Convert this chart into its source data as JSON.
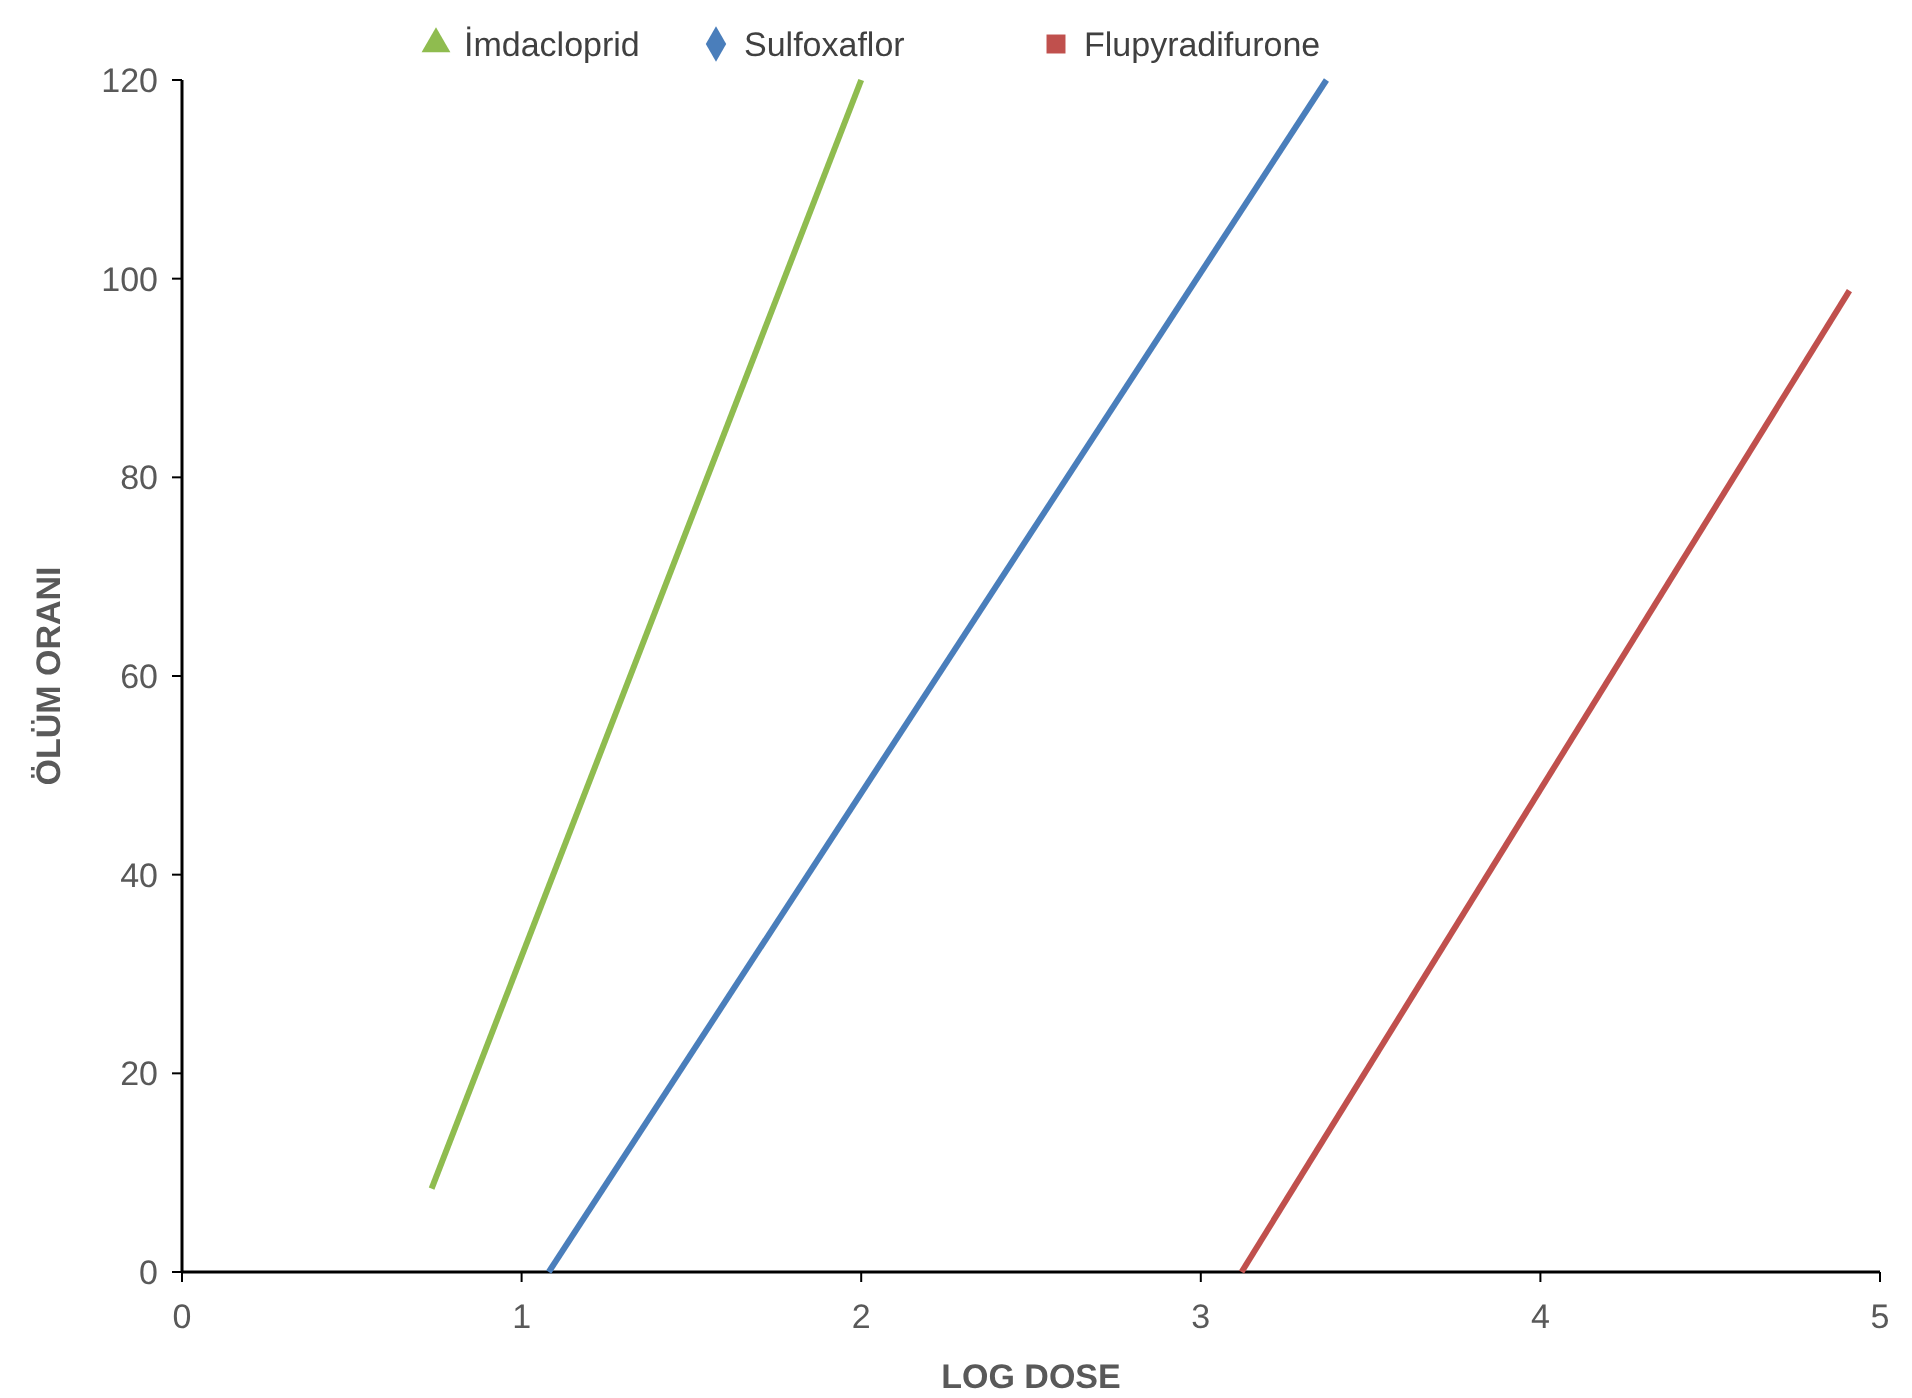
{
  "chart_data": {
    "type": "line",
    "xlabel": "LOG DOSE",
    "ylabel": "ÖLÜM ORANI",
    "xlim": [
      0,
      5
    ],
    "xticks": [
      0,
      1,
      2,
      3,
      4,
      5
    ],
    "ylim": [
      0,
      120
    ],
    "yticks": [
      0,
      20,
      40,
      60,
      80,
      100,
      120
    ],
    "grid": false,
    "legend": "top",
    "line_style": "solid",
    "series": [
      {
        "name": "İmdacloprid",
        "color": "#8fbc4f",
        "x": [
          0.735,
          2.0
        ],
        "values": [
          8.4,
          120
        ]
      },
      {
        "name": "Sulfoxaflor",
        "color": "#4a7ebb",
        "x": [
          1.08,
          3.37
        ],
        "values": [
          0,
          120
        ]
      },
      {
        "name": "Flupyradifurone",
        "color": "#c0504d",
        "x": [
          3.12,
          4.91
        ],
        "values": [
          0,
          98.8
        ]
      }
    ]
  }
}
